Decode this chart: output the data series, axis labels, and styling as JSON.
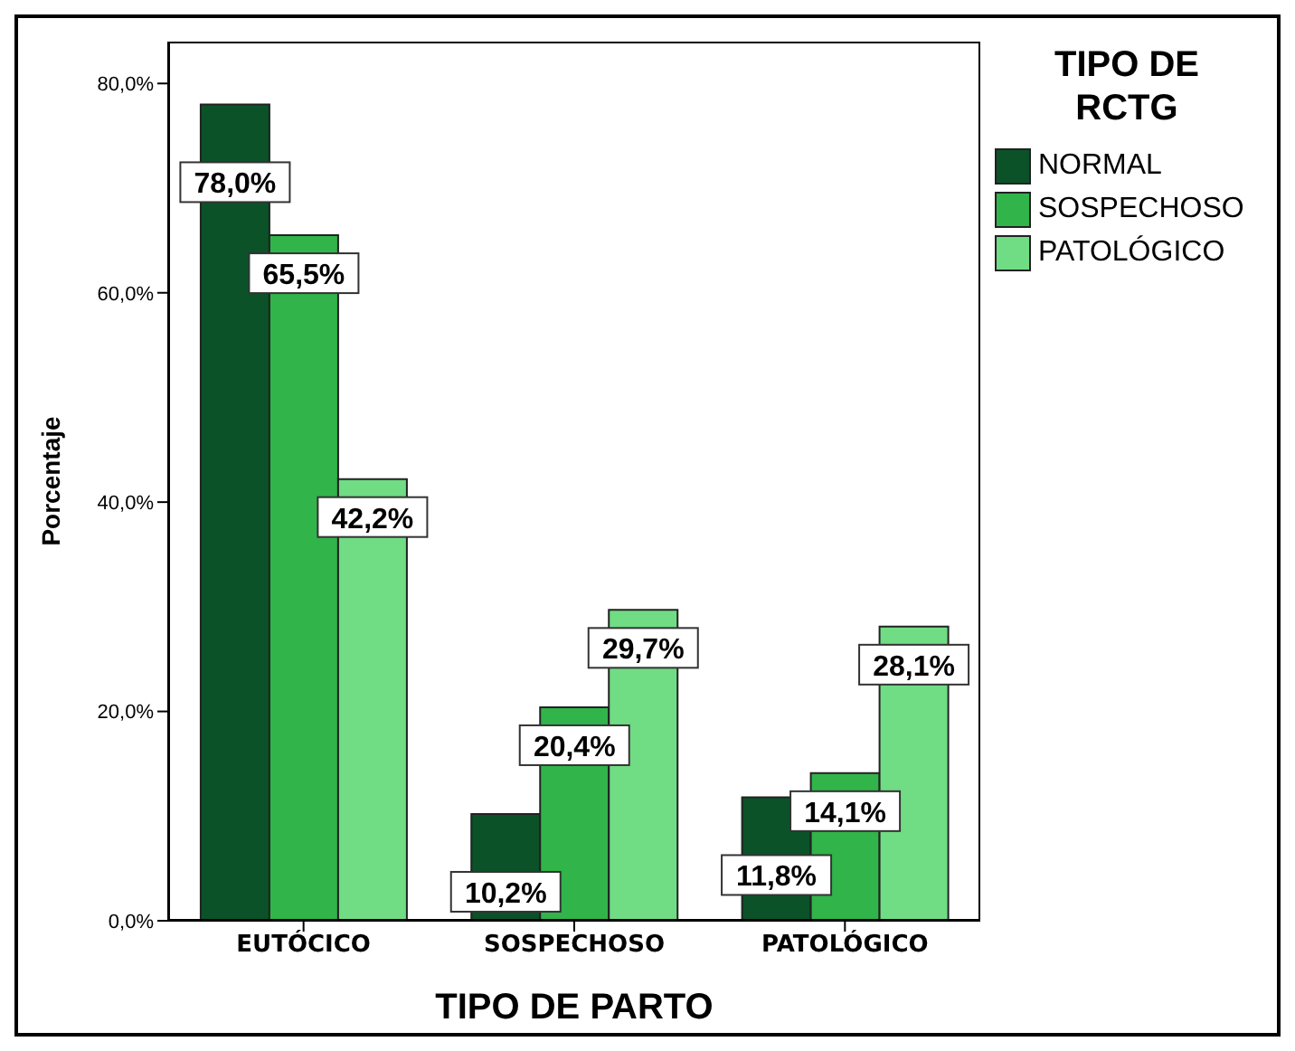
{
  "chart_data": {
    "type": "bar",
    "xlabel": "TIPO DE PARTO",
    "ylabel": "Porcentaje",
    "legend_title": "TIPO DE RCTG",
    "categories": [
      "EUTÓCICO",
      "SOSPECHOSO",
      "PATOLÓGICO"
    ],
    "series": [
      {
        "name": "NORMAL",
        "color": "#0b5229",
        "values": [
          78.0,
          10.2,
          11.8
        ],
        "value_labels": [
          "78,0%",
          "10,2%",
          "11,8%"
        ]
      },
      {
        "name": "SOSPECHOSO",
        "color": "#31b44a",
        "values": [
          65.5,
          20.4,
          14.1
        ],
        "value_labels": [
          "65,5%",
          "20,4%",
          "14,1%"
        ]
      },
      {
        "name": "PATOLÓGICO",
        "color": "#70dc84",
        "values": [
          42.2,
          29.7,
          28.1
        ],
        "value_labels": [
          "42,2%",
          "29,7%",
          "28,1%"
        ]
      }
    ],
    "ylim": [
      0,
      84
    ],
    "yticks": [
      {
        "value": 0,
        "label": "0,0%"
      },
      {
        "value": 20,
        "label": "20,0%"
      },
      {
        "value": 40,
        "label": "40,0%"
      },
      {
        "value": 60,
        "label": "60,0%"
      },
      {
        "value": 80,
        "label": "80,0%"
      }
    ],
    "grid": false,
    "legend": "top right"
  }
}
